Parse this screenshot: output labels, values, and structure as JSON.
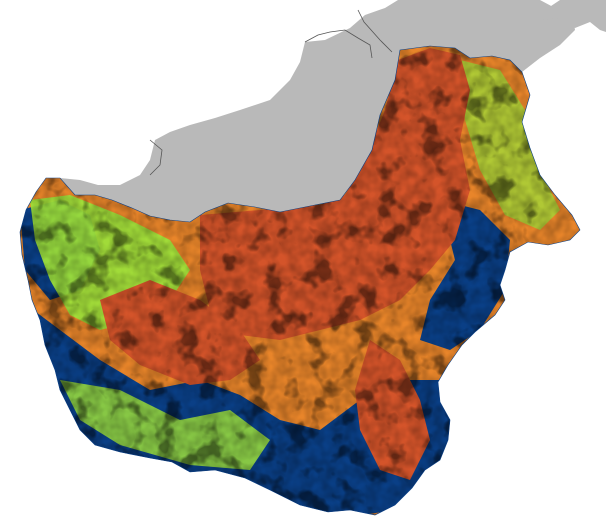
{
  "map": {
    "palette": {
      "background": "#ffffff",
      "neighbor_land": "#b9b9b9",
      "border_line": "#555555",
      "class_high": "#d4542a",
      "class_mid": "#e8852a",
      "class_low": "#9ddf3a",
      "class_lower": "#3cbf63",
      "class_forest": "#0a3f86",
      "class_teal": "#1a7a8c"
    },
    "legend_visible": false,
    "labels_visible": false
  }
}
